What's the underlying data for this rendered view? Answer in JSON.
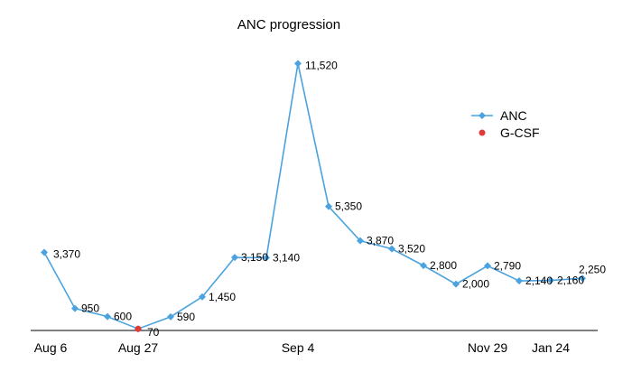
{
  "chart_data": {
    "type": "line",
    "title": "ANC progression",
    "xlabel": "",
    "ylabel": "",
    "ylim": [
      0,
      12000
    ],
    "grid": false,
    "legend_position": "right",
    "colors": {
      "anc": "#4aa3df",
      "gcsf": "#e03a3a",
      "axis": "#000000"
    },
    "x_tick_labels": [
      "Aug 6",
      "Aug 27",
      "Sep 4",
      "Nov 29",
      "Jan 24"
    ],
    "x_tick_points": [
      0,
      3,
      8,
      14,
      16
    ],
    "series": [
      {
        "name": "ANC",
        "marker": "diamond",
        "values": [
          3370,
          950,
          600,
          70,
          590,
          1450,
          3150,
          3140,
          11520,
          5350,
          3870,
          3520,
          2800,
          2000,
          2790,
          2140,
          2160,
          2250
        ],
        "labels": [
          "3,370",
          "950",
          "600",
          "70",
          "590",
          "1,450",
          "3,150",
          "3,140",
          "11,520",
          "5,350",
          "3,870",
          "3,520",
          "2,800",
          "2,000",
          "2,790",
          "2,140",
          "2,160",
          "2,250"
        ]
      },
      {
        "name": "G-CSF",
        "marker": "circle",
        "points": [
          3
        ],
        "values": [
          70
        ]
      }
    ]
  }
}
